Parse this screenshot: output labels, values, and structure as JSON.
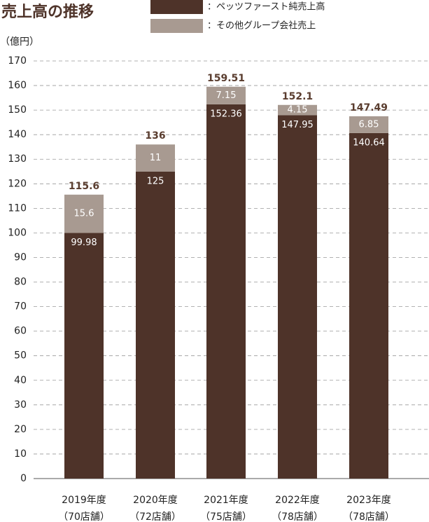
{
  "chart_data": {
    "type": "stacked_bar",
    "title": "売上高の推移",
    "y_label": "（億円）",
    "categories": [
      "2019年度",
      "2020年度",
      "2021年度",
      "2022年度",
      "2023年度"
    ],
    "store_counts": [
      "（70店舗）",
      "（72店舗）",
      "（75店舗）",
      "（78店舗）",
      "（78店舗）"
    ],
    "series": [
      {
        "name": "：ペッツファースト純売上高",
        "color": "#4e3329",
        "values": [
          99.98,
          125,
          152.36,
          147.95,
          140.64
        ]
      },
      {
        "name": "：その他グループ会社売上",
        "color": "#a89a91",
        "values": [
          15.6,
          11,
          7.15,
          4.15,
          6.85
        ]
      }
    ],
    "totals": [
      115.6,
      136,
      159.51,
      152.1,
      147.49
    ],
    "ylim": [
      0,
      170
    ],
    "yticks": [
      0,
      10,
      20,
      30,
      40,
      50,
      60,
      70,
      80,
      90,
      100,
      110,
      120,
      130,
      140,
      150,
      160,
      170
    ],
    "grid": true
  }
}
